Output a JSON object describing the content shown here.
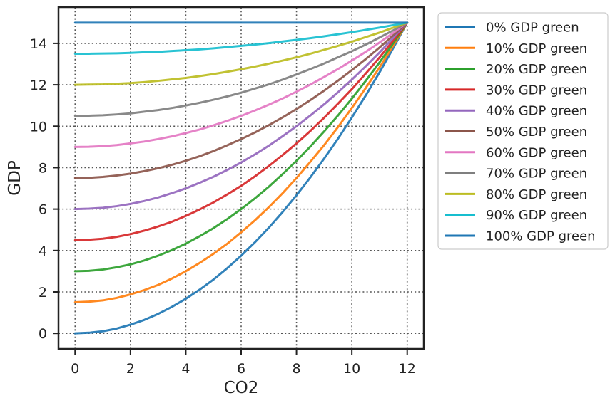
{
  "chart_data": {
    "type": "line",
    "xlabel": "CO2",
    "ylabel": "GDP",
    "xlim": [
      -0.6,
      12.6
    ],
    "ylim": [
      -0.75,
      15.75
    ],
    "x_ticks": [
      0,
      2,
      4,
      6,
      8,
      10,
      12
    ],
    "y_ticks": [
      0,
      2,
      4,
      6,
      8,
      10,
      12,
      14
    ],
    "grid": true,
    "legend_position": "outside-right",
    "x": [
      0,
      0.5,
      1,
      1.5,
      2,
      2.5,
      3,
      3.5,
      4,
      4.5,
      5,
      5.5,
      6,
      6.5,
      7,
      7.5,
      8,
      8.5,
      9,
      9.5,
      10,
      10.5,
      11,
      11.5,
      12
    ],
    "series": [
      {
        "name": "0% GDP green",
        "color": "#1f77b4",
        "values": [
          0,
          0.03,
          0.1,
          0.23,
          0.42,
          0.65,
          0.94,
          1.28,
          1.67,
          2.11,
          2.6,
          3.15,
          3.75,
          4.4,
          5.1,
          5.86,
          6.67,
          7.53,
          8.44,
          9.4,
          10.42,
          11.48,
          12.6,
          13.78,
          15.0
        ]
      },
      {
        "name": "10% GDP green",
        "color": "#ff7f0e",
        "values": [
          1.5,
          1.53,
          1.59,
          1.71,
          1.88,
          2.09,
          2.34,
          2.65,
          3.0,
          3.4,
          3.84,
          4.33,
          4.88,
          5.46,
          6.09,
          6.77,
          7.5,
          8.28,
          9.09,
          9.96,
          10.88,
          11.84,
          12.84,
          13.9,
          15.0
        ]
      },
      {
        "name": "20% GDP green",
        "color": "#2ca02c",
        "values": [
          3.0,
          3.02,
          3.08,
          3.19,
          3.33,
          3.52,
          3.75,
          4.02,
          4.33,
          4.69,
          5.08,
          5.52,
          6.0,
          6.52,
          7.08,
          7.69,
          8.33,
          9.02,
          9.75,
          10.52,
          11.33,
          12.19,
          13.08,
          14.02,
          15.0
        ]
      },
      {
        "name": "30% GDP green",
        "color": "#d62728",
        "values": [
          4.5,
          4.52,
          4.57,
          4.66,
          4.79,
          4.96,
          5.16,
          5.39,
          5.67,
          5.98,
          6.32,
          6.71,
          7.12,
          7.58,
          8.08,
          8.61,
          9.17,
          9.77,
          10.41,
          11.09,
          11.79,
          12.54,
          13.32,
          14.14,
          15.0
        ]
      },
      {
        "name": "40% GDP green",
        "color": "#9467bd",
        "values": [
          6.0,
          6.02,
          6.06,
          6.14,
          6.25,
          6.39,
          6.56,
          6.77,
          7.0,
          7.27,
          7.56,
          7.89,
          8.25,
          8.64,
          9.06,
          9.52,
          10.0,
          10.52,
          11.06,
          11.64,
          12.25,
          12.89,
          13.56,
          14.27,
          15.0
        ]
      },
      {
        "name": "50% GDP green",
        "color": "#8c564b",
        "values": [
          7.5,
          7.51,
          7.55,
          7.62,
          7.71,
          7.83,
          7.97,
          8.14,
          8.33,
          8.55,
          8.8,
          9.08,
          9.38,
          9.7,
          10.05,
          10.43,
          10.83,
          11.26,
          11.72,
          12.2,
          12.71,
          13.24,
          13.8,
          14.39,
          15.0
        ]
      },
      {
        "name": "60% GDP green",
        "color": "#e377c2",
        "values": [
          9.0,
          9.01,
          9.04,
          9.09,
          9.17,
          9.26,
          9.38,
          9.51,
          9.67,
          9.84,
          10.04,
          10.26,
          10.5,
          10.76,
          11.04,
          11.34,
          11.67,
          12.01,
          12.38,
          12.76,
          13.17,
          13.59,
          14.04,
          14.51,
          15.0
        ]
      },
      {
        "name": "70% GDP green",
        "color": "#7f7f7f",
        "values": [
          10.5,
          10.51,
          10.53,
          10.57,
          10.62,
          10.7,
          10.78,
          10.88,
          11.0,
          11.13,
          11.28,
          11.44,
          11.62,
          11.82,
          12.02,
          12.25,
          12.5,
          12.76,
          13.03,
          13.33,
          13.62,
          13.94,
          14.28,
          14.63,
          15.0
        ]
      },
      {
        "name": "80% GDP green",
        "color": "#bcbd22",
        "values": [
          12.0,
          12.01,
          12.02,
          12.05,
          12.08,
          12.13,
          12.19,
          12.26,
          12.33,
          12.42,
          12.52,
          12.63,
          12.75,
          12.88,
          13.02,
          13.17,
          13.33,
          13.5,
          13.69,
          13.88,
          14.08,
          14.3,
          14.52,
          14.76,
          15.0
        ]
      },
      {
        "name": "90% GDP green",
        "color": "#17becf",
        "values": [
          13.5,
          13.5,
          13.51,
          13.52,
          13.54,
          13.57,
          13.59,
          13.63,
          13.67,
          13.71,
          13.76,
          13.82,
          13.88,
          13.94,
          14.01,
          14.09,
          14.17,
          14.25,
          14.34,
          14.44,
          14.54,
          14.65,
          14.76,
          14.88,
          15.0
        ]
      },
      {
        "name": "100% GDP green",
        "color": "#1f77b4",
        "values": [
          15,
          15,
          15,
          15,
          15,
          15,
          15,
          15,
          15,
          15,
          15,
          15,
          15,
          15,
          15,
          15,
          15,
          15,
          15,
          15,
          15,
          15,
          15,
          15,
          15
        ]
      }
    ]
  }
}
